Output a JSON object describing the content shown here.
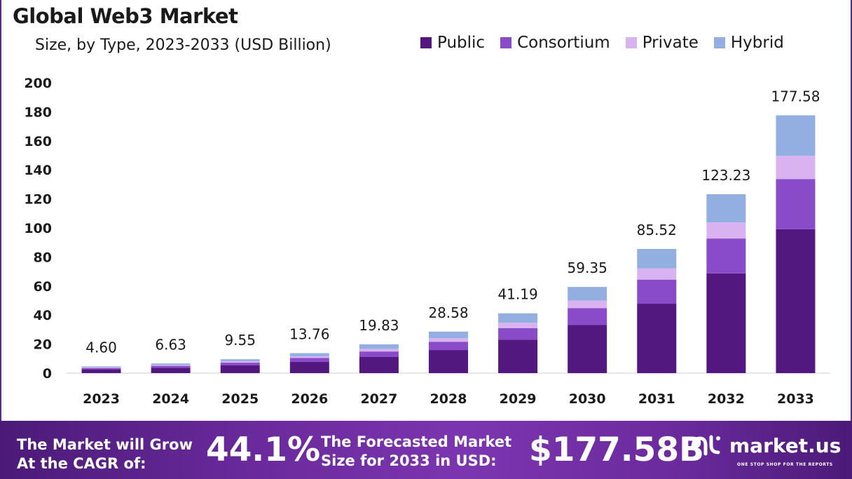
{
  "header": {
    "title": "Global Web3 Market",
    "subtitle": "Size, by Type, 2023-2033 (USD Billion)"
  },
  "colors": {
    "public": "#52187f",
    "consortium": "#8a4bc8",
    "private": "#d9b3f0",
    "hybrid": "#93aee0",
    "footer_bg": "#6a2a9c"
  },
  "chart_data": {
    "type": "bar",
    "stacked": true,
    "title": "Global Web3 Market",
    "subtitle": "Size, by Type, 2023-2033 (USD Billion)",
    "categories": [
      "2023",
      "2024",
      "2025",
      "2026",
      "2027",
      "2028",
      "2029",
      "2030",
      "2031",
      "2032",
      "2033"
    ],
    "series": [
      {
        "name": "Public",
        "color": "#52187f",
        "values": [
          2.6,
          3.7,
          5.3,
          7.7,
          11.1,
          15.9,
          23.0,
          33.1,
          47.8,
          68.7,
          99.1
        ]
      },
      {
        "name": "Consortium",
        "color": "#8a4bc8",
        "values": [
          0.9,
          1.3,
          1.9,
          2.7,
          3.8,
          5.6,
          8.0,
          11.6,
          16.6,
          24.0,
          34.6
        ]
      },
      {
        "name": "Private",
        "color": "#d9b3f0",
        "values": [
          0.4,
          0.6,
          0.9,
          1.2,
          1.8,
          2.6,
          3.7,
          5.3,
          7.7,
          11.1,
          16.0
        ]
      },
      {
        "name": "Hybrid",
        "color": "#93aee0",
        "values": [
          0.7,
          1.03,
          1.45,
          2.16,
          3.13,
          4.48,
          6.49,
          9.35,
          13.42,
          19.43,
          27.88
        ]
      }
    ],
    "totals": [
      "4.60",
      "6.63",
      "9.55",
      "13.76",
      "19.83",
      "28.58",
      "41.19",
      "59.35",
      "85.52",
      "123.23",
      "177.58"
    ],
    "ylim": [
      0,
      200
    ],
    "yticks": [
      0,
      20,
      40,
      60,
      80,
      100,
      120,
      140,
      160,
      180,
      200
    ],
    "xlabel": "",
    "ylabel": "",
    "grid": false,
    "legend_position": "top-right"
  },
  "footer": {
    "cagr_label_line1": "The Market will Grow",
    "cagr_label_line2": "At the CAGR of:",
    "cagr_value": "44.1%",
    "forecast_label_line1": "The Forecasted Market",
    "forecast_label_line2": "Size for 2033 in USD:",
    "forecast_value": "$177.58B",
    "brand_name": "market.us",
    "brand_tagline": "ONE STOP SHOP FOR THE REPORTS"
  }
}
